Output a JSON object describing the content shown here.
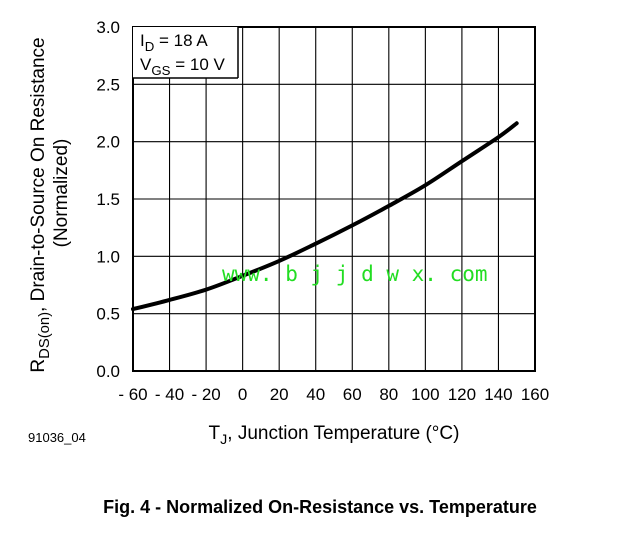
{
  "chart_data": {
    "type": "line",
    "title": "",
    "x": [
      -60,
      -40,
      -20,
      0,
      20,
      40,
      60,
      80,
      100,
      120,
      140,
      150
    ],
    "series": [
      {
        "name": "",
        "values": [
          0.54,
          0.62,
          0.71,
          0.83,
          0.96,
          1.11,
          1.27,
          1.44,
          1.62,
          1.83,
          2.04,
          2.16
        ]
      }
    ],
    "xlim": [
      -60,
      160
    ],
    "ylim": [
      0.0,
      3.0
    ],
    "x_ticks": [
      "- 60",
      "- 40",
      "- 20",
      "0",
      "20",
      "40",
      "60",
      "80",
      "100",
      "120",
      "140",
      "160"
    ],
    "y_ticks": [
      "0.0",
      "0.5",
      "1.0",
      "1.5",
      "2.0",
      "2.5",
      "3.0"
    ],
    "grid": true,
    "xlabel": {
      "main": "T",
      "sub": "J",
      "rest": ", Junction Temperature (°C)"
    },
    "ylabel": {
      "main": "R",
      "sub": "DS(on)",
      "rest": ", Drain-to-Source On Resistance",
      "line2": "(Normalized)"
    },
    "conditions": [
      {
        "main": "I",
        "sub": "D",
        "rest": " = 18 A"
      },
      {
        "main": "V",
        "sub": "GS",
        "rest": " = 10 V"
      }
    ],
    "watermark": "www. b j j d w x. com",
    "figure_code": "91036_04"
  },
  "caption": "Fig. 4 - Normalized On-Resistance vs. Temperature"
}
